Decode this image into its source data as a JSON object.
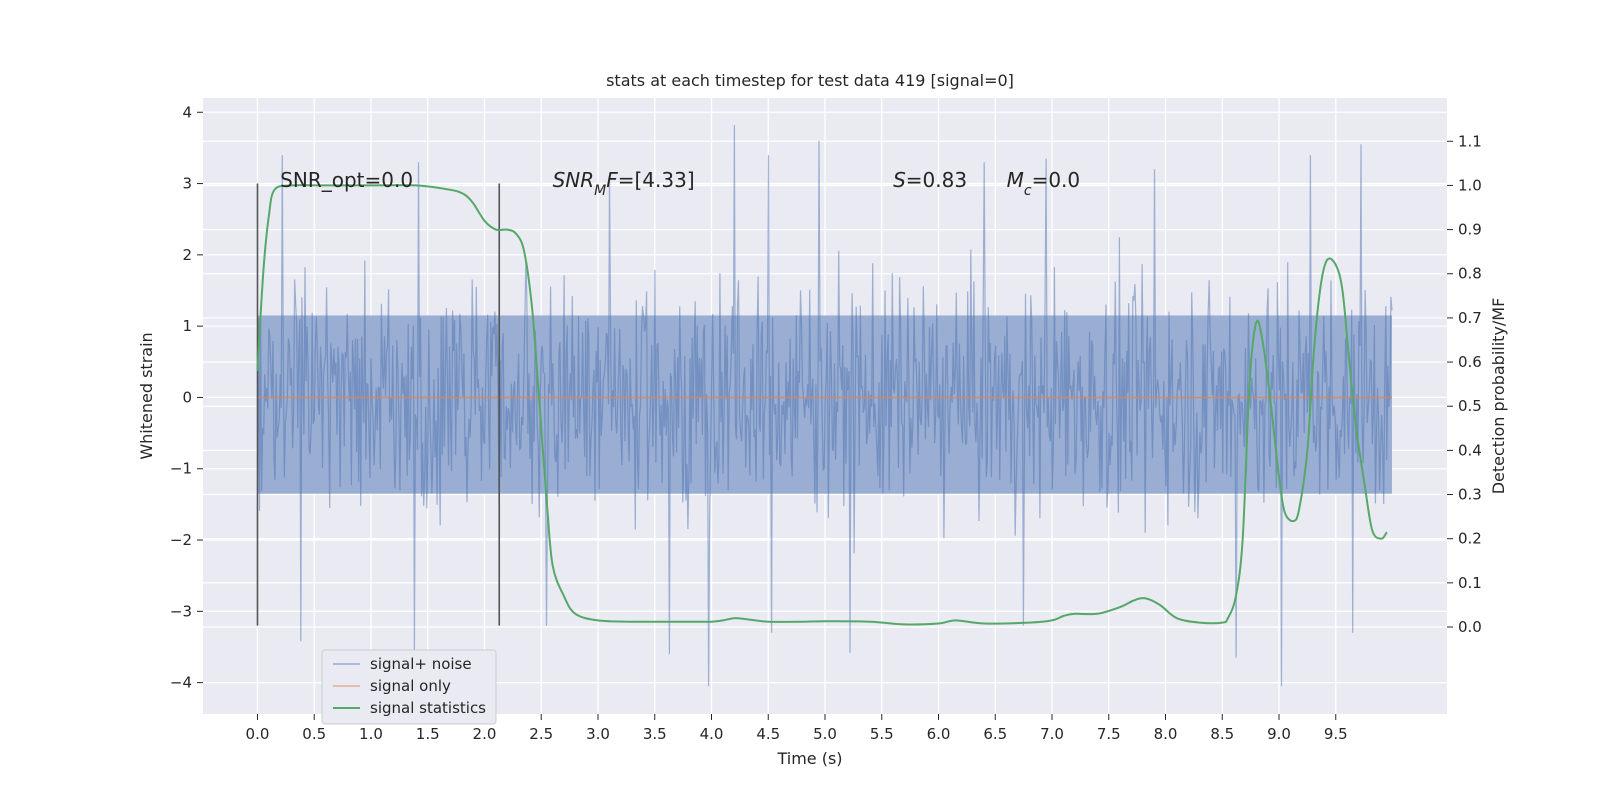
{
  "chart_data": {
    "type": "line",
    "title": "stats at each timestep for test data 419 [signal=0]",
    "xlabel": "Time (s)",
    "ylabel_left": "Whitened strain",
    "ylabel_right": "Detection probability/MF",
    "xlim": [
      -0.48,
      10.48
    ],
    "ylim_left": [
      -4.44,
      4.2
    ],
    "ylim_right": [
      -0.197,
      1.198
    ],
    "x_ticks": [
      0.0,
      0.5,
      1.0,
      1.5,
      2.0,
      2.5,
      3.0,
      3.5,
      4.0,
      4.5,
      5.0,
      5.5,
      6.0,
      6.5,
      7.0,
      7.5,
      8.0,
      8.5,
      9.0,
      9.5
    ],
    "x_tick_labels": [
      "0.0",
      "0.5",
      "1.0",
      "1.5",
      "2.0",
      "2.5",
      "3.0",
      "3.5",
      "4.0",
      "4.5",
      "5.0",
      "5.5",
      "6.0",
      "6.5",
      "7.0",
      "7.5",
      "8.0",
      "8.5",
      "9.0",
      "9.5"
    ],
    "y_ticks_left": [
      -4,
      -3,
      -2,
      -1,
      0,
      1,
      2,
      3,
      4
    ],
    "y_tick_labels_left": [
      "−4",
      "−3",
      "−2",
      "−1",
      "0",
      "1",
      "2",
      "3",
      "4"
    ],
    "y_ticks_right": [
      0.0,
      0.1,
      0.2,
      0.3,
      0.4,
      0.5,
      0.6,
      0.7,
      0.8,
      0.9,
      1.0,
      1.1
    ],
    "y_tick_labels_right": [
      "0.0",
      "0.1",
      "0.2",
      "0.3",
      "0.4",
      "0.5",
      "0.6",
      "0.7",
      "0.8",
      "0.9",
      "1.0",
      "1.1"
    ],
    "grid": true,
    "background": "#eaeaf2",
    "legend_position": "lower-left",
    "annotations": [
      {
        "id": "snr-opt",
        "text": "SNR_opt=0.0",
        "x": 0.2,
        "y": 2.95,
        "italic": false
      },
      {
        "id": "snr-mf",
        "text_parts": [
          {
            "t": "SNR",
            "i": true
          },
          {
            "t": "M",
            "i": true,
            "sub": true
          },
          {
            "t": "F",
            "i": true
          },
          {
            "t": "=[4.33]",
            "i": false
          }
        ],
        "x": 2.6,
        "y": 2.95
      },
      {
        "id": "s-stat",
        "text_parts": [
          {
            "t": "S",
            "i": true
          },
          {
            "t": "=0.83",
            "i": false
          }
        ],
        "x": 5.6,
        "y": 2.95
      },
      {
        "id": "chirp-mass",
        "text_parts": [
          {
            "t": "M",
            "i": true
          },
          {
            "t": "c",
            "i": true,
            "sub": true
          },
          {
            "t": "=0.0",
            "i": false
          }
        ],
        "x": 6.6,
        "y": 2.95
      }
    ],
    "vertical_markers": [
      {
        "x": 0.0,
        "ymin": -3.2,
        "ymax": 3.0
      },
      {
        "x": 2.13,
        "ymin": -3.2,
        "ymax": 3.0
      }
    ],
    "series": [
      {
        "name": "signal+ noise",
        "color": "#4c72b0",
        "axis": "left",
        "kind": "noise",
        "x_range": [
          0.0,
          9.995
        ],
        "core_amplitude": 1.0,
        "max_spikes_positive": [
          {
            "x": 0.22,
            "y": 3.4
          },
          {
            "x": 1.42,
            "y": 3.3
          },
          {
            "x": 4.2,
            "y": 3.82
          },
          {
            "x": 4.95,
            "y": 3.6
          },
          {
            "x": 4.5,
            "y": 3.4
          },
          {
            "x": 6.4,
            "y": 3.3
          },
          {
            "x": 6.95,
            "y": 3.35
          },
          {
            "x": 9.28,
            "y": 3.4
          },
          {
            "x": 9.72,
            "y": 3.55
          },
          {
            "x": 8.62,
            "y": 3.1
          },
          {
            "x": 7.9,
            "y": 3.2
          },
          {
            "x": 3.1,
            "y": 3.1
          }
        ],
        "max_spikes_negative": [
          {
            "x": 0.38,
            "y": -3.42
          },
          {
            "x": 1.38,
            "y": -3.65
          },
          {
            "x": 3.63,
            "y": -3.6
          },
          {
            "x": 3.97,
            "y": -4.05
          },
          {
            "x": 5.22,
            "y": -3.58
          },
          {
            "x": 8.62,
            "y": -3.65
          },
          {
            "x": 9.02,
            "y": -4.05
          },
          {
            "x": 9.65,
            "y": -3.3
          },
          {
            "x": 4.53,
            "y": -3.3
          },
          {
            "x": 6.75,
            "y": -3.2
          },
          {
            "x": 2.55,
            "y": -3.2
          }
        ]
      },
      {
        "name": "signal only",
        "color": "#dd8452",
        "axis": "left",
        "x": [
          0.0,
          9.995
        ],
        "y": [
          0.0,
          0.0
        ]
      },
      {
        "name": "signal statistics",
        "color": "#55a868",
        "axis": "right",
        "x": [
          0.0,
          0.05,
          0.1,
          0.15,
          0.3,
          0.6,
          1.0,
          1.4,
          1.7,
          1.82,
          1.9,
          2.0,
          2.1,
          2.2,
          2.28,
          2.35,
          2.42,
          2.48,
          2.55,
          2.6,
          2.7,
          2.8,
          3.0,
          3.3,
          3.6,
          3.9,
          4.0,
          4.1,
          4.2,
          4.3,
          4.5,
          4.8,
          5.0,
          5.4,
          5.7,
          6.0,
          6.15,
          6.4,
          6.8,
          7.0,
          7.1,
          7.2,
          7.4,
          7.6,
          7.72,
          7.82,
          7.95,
          8.1,
          8.3,
          8.5,
          8.55,
          8.62,
          8.68,
          8.74,
          8.8,
          8.86,
          8.93,
          9.0,
          9.05,
          9.13,
          9.18,
          9.25,
          9.3,
          9.36,
          9.42,
          9.5,
          9.56,
          9.62,
          9.68,
          9.75,
          9.82,
          9.9,
          9.95
        ],
        "y": [
          0.58,
          0.8,
          0.93,
          0.99,
          1.0,
          1.0,
          1.0,
          1.0,
          0.99,
          0.98,
          0.96,
          0.92,
          0.9,
          0.9,
          0.89,
          0.85,
          0.72,
          0.52,
          0.28,
          0.14,
          0.07,
          0.03,
          0.015,
          0.012,
          0.012,
          0.012,
          0.012,
          0.015,
          0.02,
          0.018,
          0.012,
          0.012,
          0.013,
          0.012,
          0.006,
          0.008,
          0.015,
          0.008,
          0.01,
          0.015,
          0.025,
          0.03,
          0.03,
          0.045,
          0.06,
          0.065,
          0.05,
          0.02,
          0.01,
          0.01,
          0.02,
          0.07,
          0.2,
          0.55,
          0.69,
          0.64,
          0.5,
          0.34,
          0.26,
          0.24,
          0.27,
          0.4,
          0.6,
          0.76,
          0.83,
          0.82,
          0.76,
          0.6,
          0.45,
          0.33,
          0.22,
          0.2,
          0.215
        ]
      }
    ]
  }
}
